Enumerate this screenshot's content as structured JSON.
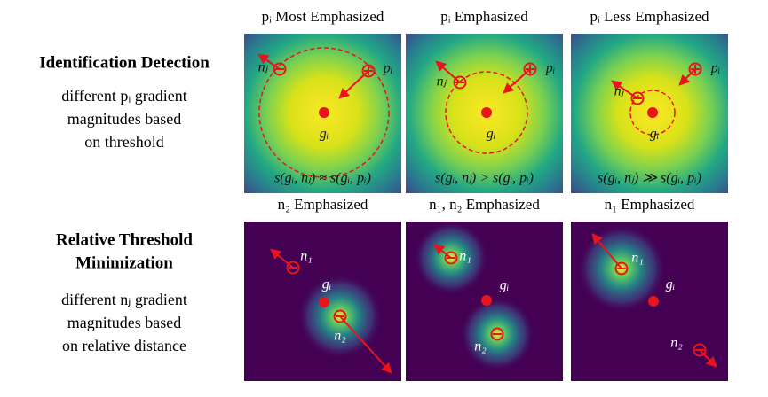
{
  "rows": [
    {
      "title": [
        "Identification Detection"
      ],
      "description": [
        "different pᵢ gradient",
        "magnitudes based",
        "on threshold"
      ],
      "panels": [
        {
          "title": "pᵢ Most Emphasized",
          "labels": [
            "nⱼ",
            "pᵢ",
            "gᵢ"
          ],
          "equation": "s(gᵢ, nⱼ) ≈ s(gᵢ, pᵢ)"
        },
        {
          "title": "pᵢ Emphasized",
          "labels": [
            "nⱼ",
            "pᵢ",
            "gᵢ"
          ],
          "equation": "s(gᵢ, nⱼ) > s(gᵢ, pᵢ)"
        },
        {
          "title": "pᵢ Less Emphasized",
          "labels": [
            "nⱼ",
            "pᵢ",
            "gᵢ"
          ],
          "equation": "s(gᵢ, nⱼ) ≫ s(gᵢ, pᵢ)"
        }
      ]
    },
    {
      "title": [
        "Relative Threshold",
        "Minimization"
      ],
      "description": [
        "different nⱼ gradient",
        "magnitudes based",
        "on relative distance"
      ],
      "panels": [
        {
          "title": "n₂ Emphasized",
          "labels": [
            "n₁",
            "gᵢ",
            "n₂"
          ]
        },
        {
          "title": "n₁, n₂ Emphasized",
          "labels": [
            "n₁",
            "gᵢ",
            "n₂"
          ]
        },
        {
          "title": "n₁ Emphasized",
          "labels": [
            "n₁",
            "gᵢ",
            "n₂"
          ]
        }
      ]
    }
  ]
}
